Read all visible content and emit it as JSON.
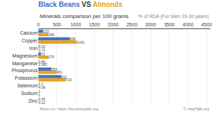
{
  "chart_data": {
    "type": "bar",
    "orientation": "horizontal",
    "title": "Black Beans VS Almonds",
    "subtitle": "Minerals comparison per 100 grams",
    "annotations": [
      "% of RDA (For Men 19-30 years)",
      "More on: https://foodvegtalk.org",
      "© VegTalk.org"
    ],
    "categories": [
      "Calcium",
      "Copper",
      "Iron",
      "Magnesium",
      "Manganese",
      "Phosphorus",
      "Potassium",
      "Selenium",
      "Sodium",
      "Zinc"
    ],
    "series": [
      {
        "name": "Black Beans",
        "color": "#4472c4",
        "values": [
          123,
          839,
          5.02,
          70,
          0.84,
          352,
          611,
          1.2,
          1,
          3.65
        ]
      },
      {
        "name": "Almonds",
        "color": "#e8a020",
        "values": [
          269,
          1031,
          3.72,
          270,
          2.285,
          481,
          733,
          4.08,
          1,
          3.12
        ]
      }
    ],
    "xlim": [
      0,
      4600
    ],
    "xticks": [
      0,
      500,
      1000,
      1500,
      2000,
      2500,
      3000,
      3500,
      4000,
      4500
    ],
    "grid": true,
    "data_labels": true,
    "legend": false
  }
}
